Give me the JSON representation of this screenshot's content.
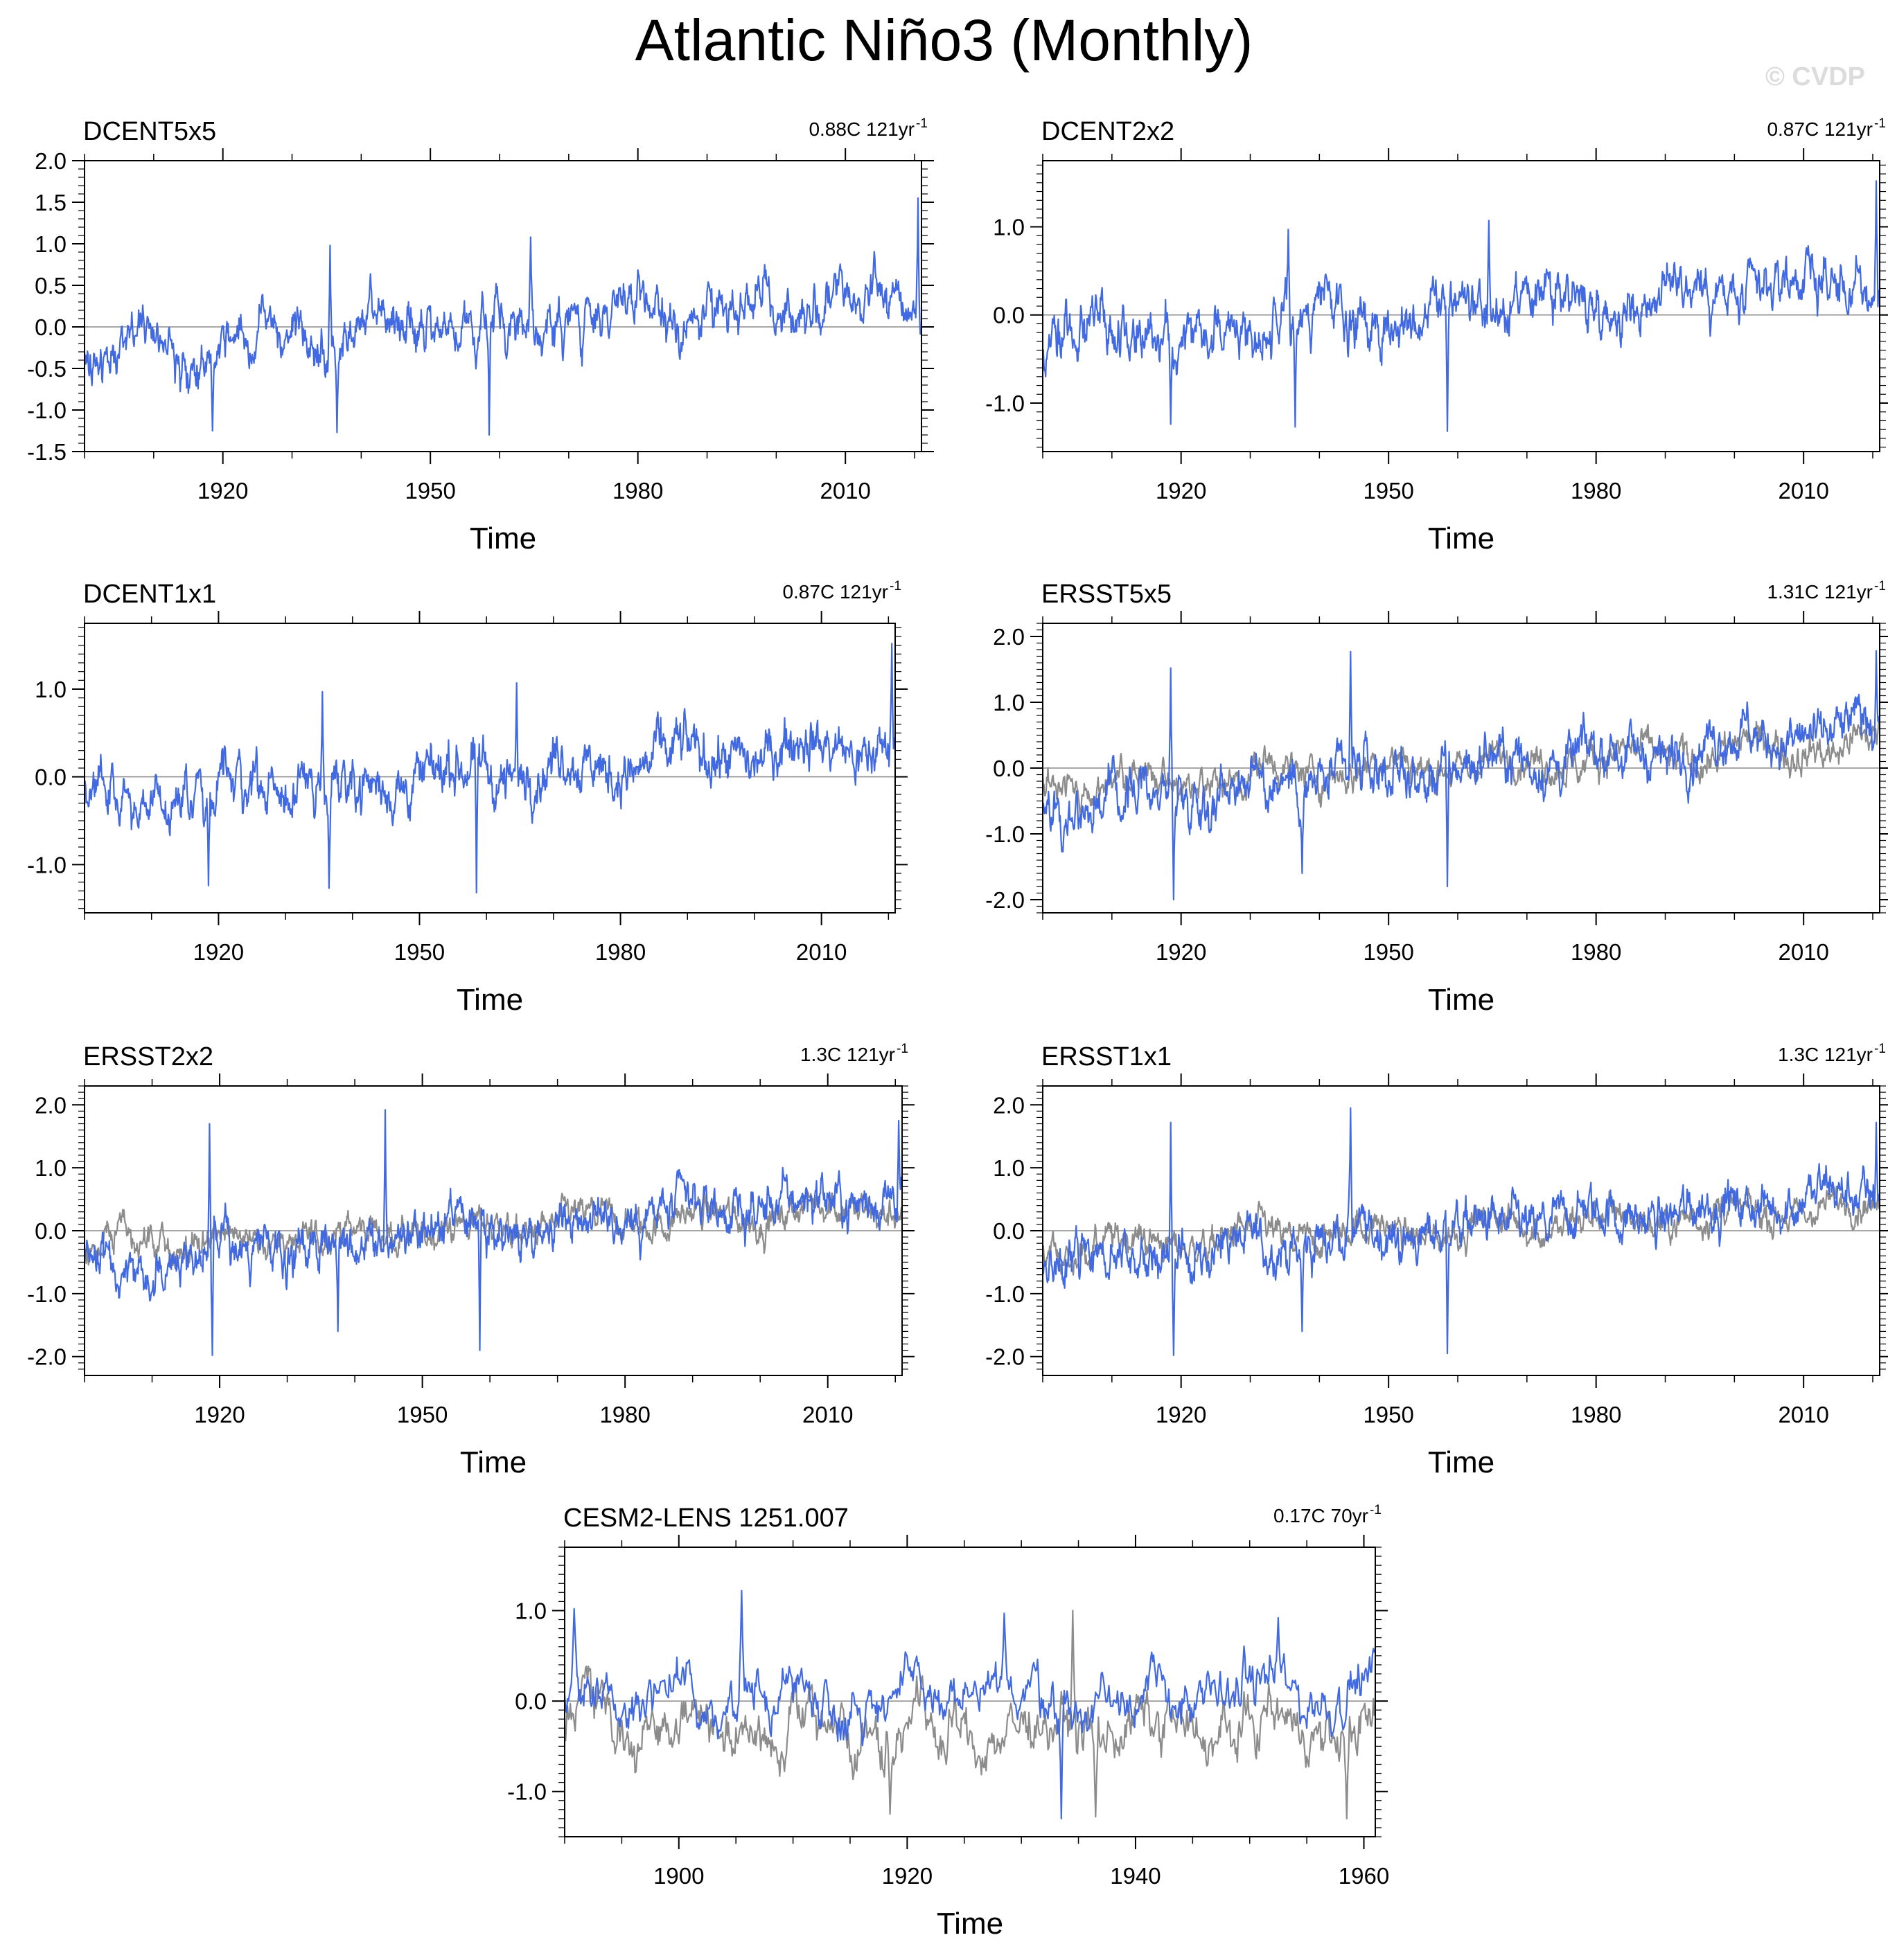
{
  "title": "Atlantic Niño3 (Monthly)",
  "watermark": "© CVDP",
  "colors": {
    "series": "#4169e1",
    "reference": "#8c8c8c",
    "axis": "#000000",
    "zero_line": "#8c8c8c"
  },
  "chart_data": [
    {
      "type": "line",
      "title": "DCENT5x5",
      "trend": "0.88C 121yr",
      "trend_superscript": "-1",
      "xlabel": "Time",
      "ylabel": "",
      "xlim": [
        1900,
        2021
      ],
      "ylim": [
        -1.5,
        2.0
      ],
      "xticks": [
        1920,
        1950,
        1980,
        2010
      ],
      "yticks": [
        -1.5,
        -1.0,
        -0.5,
        0.0,
        0.5,
        1.0,
        1.5,
        2.0
      ],
      "ytick_labels": [
        "-1.5",
        "-1.0",
        "-0.5",
        "0.0",
        "0.5",
        "1.0",
        "1.5",
        "2.0"
      ],
      "grid": false,
      "series": [
        {
          "role": "main",
          "base_trend": [
            -0.28,
            0.38
          ],
          "noise_amp": 0.33,
          "seed": 11,
          "peaks": [
            {
              "x": 2020.5,
              "y": 1.55
            },
            {
              "x": 1964.5,
              "y": 1.08
            },
            {
              "x": 1935.5,
              "y": 0.98
            },
            {
              "x": 1958.5,
              "y": -1.3
            },
            {
              "x": 1936.5,
              "y": -1.27
            },
            {
              "x": 1918.5,
              "y": -1.25
            }
          ]
        }
      ]
    },
    {
      "type": "line",
      "title": "DCENT2x2",
      "trend": "0.87C 121yr",
      "trend_superscript": "-1",
      "xlabel": "Time",
      "ylabel": "",
      "xlim": [
        1900,
        2021
      ],
      "ylim": [
        -1.55,
        1.75
      ],
      "xticks": [
        1920,
        1950,
        1980,
        2010
      ],
      "yticks": [
        -1.0,
        0.0,
        1.0
      ],
      "ytick_labels": [
        "-1.0",
        "0.0",
        "1.0"
      ],
      "grid": false,
      "series": [
        {
          "role": "main",
          "base_trend": [
            -0.28,
            0.38
          ],
          "noise_amp": 0.33,
          "seed": 12,
          "peaks": [
            {
              "x": 2020.5,
              "y": 1.52
            },
            {
              "x": 1964.5,
              "y": 1.07
            },
            {
              "x": 1935.5,
              "y": 0.97
            },
            {
              "x": 1958.5,
              "y": -1.32
            },
            {
              "x": 1936.5,
              "y": -1.27
            },
            {
              "x": 1918.5,
              "y": -1.24
            }
          ]
        }
      ]
    },
    {
      "type": "line",
      "title": "DCENT1x1",
      "trend": "0.87C 121yr",
      "trend_superscript": "-1",
      "xlabel": "Time",
      "ylabel": "",
      "xlim": [
        1900,
        2021
      ],
      "ylim": [
        -1.55,
        1.75
      ],
      "xticks": [
        1920,
        1950,
        1980,
        2010
      ],
      "yticks": [
        -1.0,
        0.0,
        1.0
      ],
      "ytick_labels": [
        "-1.0",
        "0.0",
        "1.0"
      ],
      "grid": false,
      "series": [
        {
          "role": "main",
          "base_trend": [
            -0.28,
            0.38
          ],
          "noise_amp": 0.33,
          "seed": 13,
          "peaks": [
            {
              "x": 2020.5,
              "y": 1.52
            },
            {
              "x": 1964.5,
              "y": 1.07
            },
            {
              "x": 1935.5,
              "y": 0.97
            },
            {
              "x": 1958.5,
              "y": -1.32
            },
            {
              "x": 1936.5,
              "y": -1.27
            },
            {
              "x": 1918.5,
              "y": -1.24
            }
          ]
        }
      ]
    },
    {
      "type": "line",
      "title": "ERSST5x5",
      "trend": "1.31C 121yr",
      "trend_superscript": "-1",
      "xlabel": "Time",
      "ylabel": "",
      "xlim": [
        1900,
        2021
      ],
      "ylim": [
        -2.2,
        2.2
      ],
      "xticks": [
        1920,
        1950,
        1980,
        2010
      ],
      "yticks": [
        -2.0,
        -1.0,
        0.0,
        1.0,
        2.0
      ],
      "ytick_labels": [
        "-2.0",
        "-1.0",
        "0.0",
        "1.0",
        "2.0"
      ],
      "grid": false,
      "series": [
        {
          "role": "reference",
          "base_trend": [
            -0.28,
            0.38
          ],
          "noise_amp": 0.28,
          "seed": 21,
          "peaks": []
        },
        {
          "role": "main",
          "base_trend": [
            -0.55,
            0.6
          ],
          "noise_amp": 0.4,
          "seed": 22,
          "peaks": [
            {
              "x": 1944.5,
              "y": 1.77
            },
            {
              "x": 2020.5,
              "y": 1.78
            },
            {
              "x": 1918.5,
              "y": 1.52
            },
            {
              "x": 1918.9,
              "y": -2.0
            },
            {
              "x": 1958.5,
              "y": -1.8
            },
            {
              "x": 1937.5,
              "y": -1.6
            }
          ]
        }
      ]
    },
    {
      "type": "line",
      "title": "ERSST2x2",
      "trend": "1.3C 121yr",
      "trend_superscript": "-1",
      "xlabel": "Time",
      "ylabel": "",
      "xlim": [
        1900,
        2021
      ],
      "ylim": [
        -2.3,
        2.3
      ],
      "xticks": [
        1920,
        1950,
        1980,
        2010
      ],
      "yticks": [
        -2.0,
        -1.0,
        0.0,
        1.0,
        2.0
      ],
      "ytick_labels": [
        "-2.0",
        "-1.0",
        "0.0",
        "1.0",
        "2.0"
      ],
      "grid": false,
      "series": [
        {
          "role": "reference",
          "base_trend": [
            -0.28,
            0.38
          ],
          "noise_amp": 0.28,
          "seed": 31,
          "peaks": []
        },
        {
          "role": "main",
          "base_trend": [
            -0.55,
            0.6
          ],
          "noise_amp": 0.4,
          "seed": 32,
          "peaks": [
            {
              "x": 1944.5,
              "y": 1.92
            },
            {
              "x": 2020.5,
              "y": 1.75
            },
            {
              "x": 1918.5,
              "y": 1.7
            },
            {
              "x": 1918.9,
              "y": -1.98
            },
            {
              "x": 1958.5,
              "y": -1.9
            },
            {
              "x": 1937.5,
              "y": -1.6
            }
          ]
        }
      ]
    },
    {
      "type": "line",
      "title": "ERSST1x1",
      "trend": "1.3C 121yr",
      "trend_superscript": "-1",
      "xlabel": "Time",
      "ylabel": "",
      "xlim": [
        1900,
        2021
      ],
      "ylim": [
        -2.3,
        2.3
      ],
      "xticks": [
        1920,
        1950,
        1980,
        2010
      ],
      "yticks": [
        -2.0,
        -1.0,
        0.0,
        1.0,
        2.0
      ],
      "ytick_labels": [
        "-2.0",
        "-1.0",
        "0.0",
        "1.0",
        "2.0"
      ],
      "grid": false,
      "series": [
        {
          "role": "reference",
          "base_trend": [
            -0.28,
            0.38
          ],
          "noise_amp": 0.28,
          "seed": 41,
          "peaks": []
        },
        {
          "role": "main",
          "base_trend": [
            -0.55,
            0.6
          ],
          "noise_amp": 0.4,
          "seed": 42,
          "peaks": [
            {
              "x": 1944.5,
              "y": 1.95
            },
            {
              "x": 2020.5,
              "y": 1.72
            },
            {
              "x": 1918.5,
              "y": 1.72
            },
            {
              "x": 1918.9,
              "y": -1.98
            },
            {
              "x": 1958.5,
              "y": -1.95
            },
            {
              "x": 1937.5,
              "y": -1.6
            }
          ]
        }
      ]
    },
    {
      "type": "line",
      "title": "CESM2-LENS 1251.007",
      "trend": "0.17C 70yr",
      "trend_superscript": "-1",
      "xlabel": "Time",
      "ylabel": "",
      "xlim": [
        1890,
        1961
      ],
      "ylim": [
        -1.5,
        1.7
      ],
      "xticks": [
        1900,
        1920,
        1940,
        1960
      ],
      "yticks": [
        -1.0,
        0.0,
        1.0
      ],
      "ytick_labels": [
        "-1.0",
        "0.0",
        "1.0"
      ],
      "grid": false,
      "series": [
        {
          "role": "reference",
          "base_trend": [
            -0.3,
            -0.3
          ],
          "noise_amp": 0.35,
          "seed": 51,
          "peaks": [
            {
              "x": 1934.5,
              "y": 1.0
            },
            {
              "x": 1958.5,
              "y": -1.3
            },
            {
              "x": 1918.5,
              "y": -1.25
            },
            {
              "x": 1936.5,
              "y": -1.28
            }
          ]
        },
        {
          "role": "main",
          "base_trend": [
            0.0,
            0.1
          ],
          "noise_amp": 0.33,
          "seed": 52,
          "peaks": [
            {
              "x": 1890.8,
              "y": 1.02
            },
            {
              "x": 1905.5,
              "y": 1.22
            },
            {
              "x": 1933.5,
              "y": -1.3
            },
            {
              "x": 1928.5,
              "y": 0.97
            },
            {
              "x": 1952.5,
              "y": 0.92
            }
          ]
        }
      ]
    }
  ]
}
